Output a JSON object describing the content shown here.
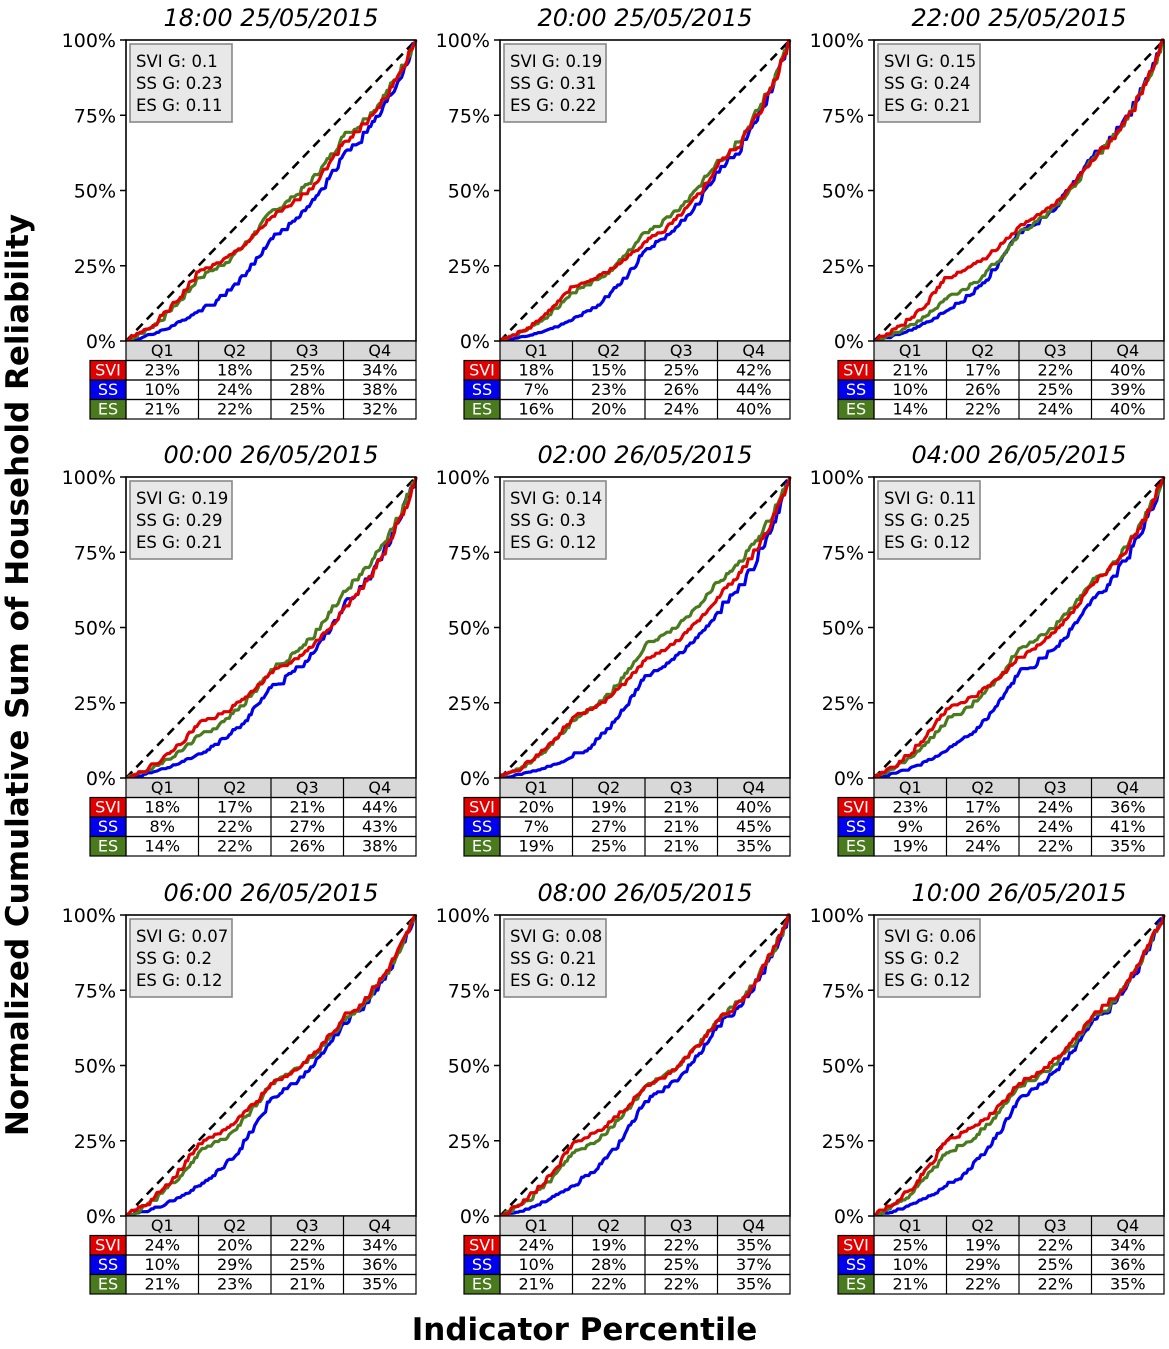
{
  "figure": {
    "ylabel": "Normalized Cumulative Sum of Household Reliability",
    "xlabel": "Indicator Percentile",
    "quartile_headers": [
      "Q1",
      "Q2",
      "Q3",
      "Q4"
    ],
    "y_ticks": [
      "0%",
      "25%",
      "50%",
      "75%",
      "100%"
    ]
  },
  "colors": {
    "SVI": "#e00000",
    "SS": "#0000ee",
    "ES": "#4a7a1e",
    "equality": "#000000"
  },
  "chart_data": [
    {
      "type": "line",
      "title": "18:00 25/05/2015",
      "ylim": [
        0,
        100
      ],
      "gini": [
        "SVI G: 0.1",
        "SS G: 0.23",
        "ES G: 0.11"
      ],
      "rows": [
        {
          "key": "SVI",
          "label": "SVI",
          "values": [
            "23%",
            "18%",
            "25%",
            "34%"
          ]
        },
        {
          "key": "SS",
          "label": "SS",
          "values": [
            "10%",
            "24%",
            "28%",
            "38%"
          ]
        },
        {
          "key": "ES",
          "label": "ES",
          "values": [
            "21%",
            "22%",
            "25%",
            "32%"
          ]
        }
      ]
    },
    {
      "type": "line",
      "title": "20:00 25/05/2015",
      "ylim": [
        0,
        100
      ],
      "gini": [
        "SVI G: 0.19",
        "SS G: 0.31",
        "ES G: 0.22"
      ],
      "rows": [
        {
          "key": "SVI",
          "label": "SVI",
          "values": [
            "18%",
            "15%",
            "25%",
            "42%"
          ]
        },
        {
          "key": "SS",
          "label": "SS",
          "values": [
            "7%",
            "23%",
            "26%",
            "44%"
          ]
        },
        {
          "key": "ES",
          "label": "ES",
          "values": [
            "16%",
            "20%",
            "24%",
            "40%"
          ]
        }
      ]
    },
    {
      "type": "line",
      "title": "22:00 25/05/2015",
      "ylim": [
        0,
        100
      ],
      "gini": [
        "SVI G: 0.15",
        "SS G: 0.24",
        "ES G: 0.21"
      ],
      "rows": [
        {
          "key": "SVI",
          "label": "SVI",
          "values": [
            "21%",
            "17%",
            "22%",
            "40%"
          ]
        },
        {
          "key": "SS",
          "label": "SS",
          "values": [
            "10%",
            "26%",
            "25%",
            "39%"
          ]
        },
        {
          "key": "ES",
          "label": "ES",
          "values": [
            "14%",
            "22%",
            "24%",
            "40%"
          ]
        }
      ]
    },
    {
      "type": "line",
      "title": "00:00 26/05/2015",
      "ylim": [
        0,
        100
      ],
      "gini": [
        "SVI G: 0.19",
        "SS G: 0.29",
        "ES G: 0.21"
      ],
      "rows": [
        {
          "key": "SVI",
          "label": "SVI",
          "values": [
            "18%",
            "17%",
            "21%",
            "44%"
          ]
        },
        {
          "key": "SS",
          "label": "SS",
          "values": [
            "8%",
            "22%",
            "27%",
            "43%"
          ]
        },
        {
          "key": "ES",
          "label": "ES",
          "values": [
            "14%",
            "22%",
            "26%",
            "38%"
          ]
        }
      ]
    },
    {
      "type": "line",
      "title": "02:00 26/05/2015",
      "ylim": [
        0,
        100
      ],
      "gini": [
        "SVI G: 0.14",
        "SS G: 0.3",
        "ES G: 0.12"
      ],
      "rows": [
        {
          "key": "SVI",
          "label": "SVI",
          "values": [
            "20%",
            "19%",
            "21%",
            "40%"
          ]
        },
        {
          "key": "SS",
          "label": "SS",
          "values": [
            "7%",
            "27%",
            "21%",
            "45%"
          ]
        },
        {
          "key": "ES",
          "label": "ES",
          "values": [
            "19%",
            "25%",
            "21%",
            "35%"
          ]
        }
      ]
    },
    {
      "type": "line",
      "title": "04:00 26/05/2015",
      "ylim": [
        0,
        100
      ],
      "gini": [
        "SVI G: 0.11",
        "SS G: 0.25",
        "ES G: 0.12"
      ],
      "rows": [
        {
          "key": "SVI",
          "label": "SVI",
          "values": [
            "23%",
            "17%",
            "24%",
            "36%"
          ]
        },
        {
          "key": "SS",
          "label": "SS",
          "values": [
            "9%",
            "26%",
            "24%",
            "41%"
          ]
        },
        {
          "key": "ES",
          "label": "ES",
          "values": [
            "19%",
            "24%",
            "22%",
            "35%"
          ]
        }
      ]
    },
    {
      "type": "line",
      "title": "06:00 26/05/2015",
      "ylim": [
        0,
        100
      ],
      "gini": [
        "SVI G: 0.07",
        "SS G: 0.2",
        "ES G: 0.12"
      ],
      "rows": [
        {
          "key": "SVI",
          "label": "SVI",
          "values": [
            "24%",
            "20%",
            "22%",
            "34%"
          ]
        },
        {
          "key": "SS",
          "label": "SS",
          "values": [
            "10%",
            "29%",
            "25%",
            "36%"
          ]
        },
        {
          "key": "ES",
          "label": "ES",
          "values": [
            "21%",
            "23%",
            "21%",
            "35%"
          ]
        }
      ]
    },
    {
      "type": "line",
      "title": "08:00 26/05/2015",
      "ylim": [
        0,
        100
      ],
      "gini": [
        "SVI G: 0.08",
        "SS G: 0.21",
        "ES G: 0.12"
      ],
      "rows": [
        {
          "key": "SVI",
          "label": "SVI",
          "values": [
            "24%",
            "19%",
            "22%",
            "35%"
          ]
        },
        {
          "key": "SS",
          "label": "SS",
          "values": [
            "10%",
            "28%",
            "25%",
            "37%"
          ]
        },
        {
          "key": "ES",
          "label": "ES",
          "values": [
            "21%",
            "22%",
            "22%",
            "35%"
          ]
        }
      ]
    },
    {
      "type": "line",
      "title": "10:00 26/05/2015",
      "ylim": [
        0,
        100
      ],
      "gini": [
        "SVI G: 0.06",
        "SS G: 0.2",
        "ES G: 0.12"
      ],
      "rows": [
        {
          "key": "SVI",
          "label": "SVI",
          "values": [
            "25%",
            "19%",
            "22%",
            "34%"
          ]
        },
        {
          "key": "SS",
          "label": "SS",
          "values": [
            "10%",
            "29%",
            "25%",
            "36%"
          ]
        },
        {
          "key": "ES",
          "label": "ES",
          "values": [
            "21%",
            "22%",
            "22%",
            "35%"
          ]
        }
      ]
    }
  ]
}
